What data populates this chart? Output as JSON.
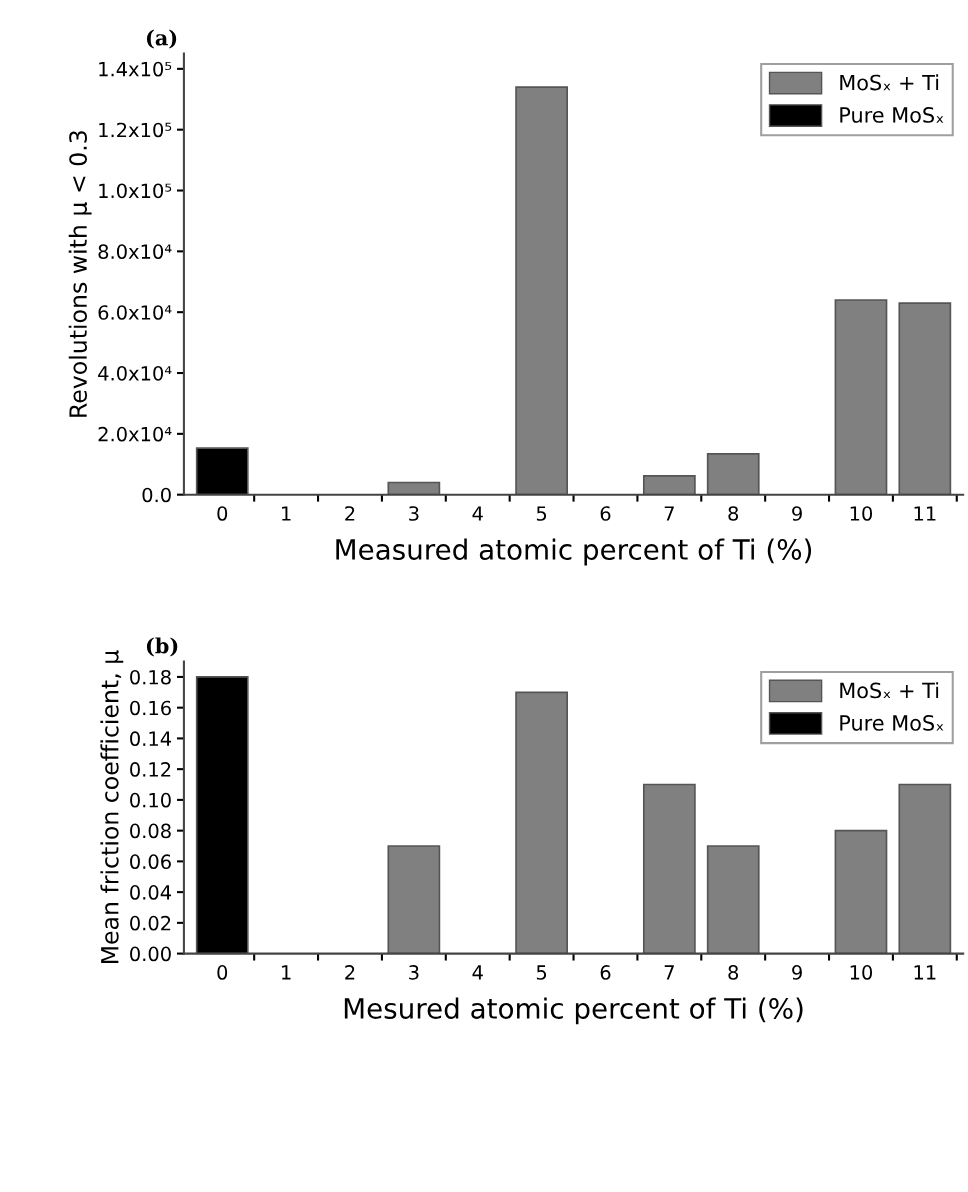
{
  "chart_data": [
    {
      "type": "bar",
      "title": "(a)",
      "xlabel": "Measured atomic percent of Ti (%)",
      "ylabel": "Revolutions with μ < 0.3",
      "categories": [
        "0",
        "1",
        "2",
        "3",
        "4",
        "5",
        "6",
        "7",
        "8",
        "9",
        "10",
        "11"
      ],
      "series": [
        {
          "name": "MoSₓ + Ti",
          "color": "#808080",
          "values": [
            null,
            null,
            null,
            4000,
            null,
            134000,
            null,
            6200,
            13400,
            null,
            64000,
            63000
          ]
        },
        {
          "name": "Pure MoSₓ",
          "color": "#000000",
          "values": [
            15300,
            null,
            null,
            null,
            null,
            null,
            null,
            null,
            null,
            null,
            null,
            null
          ]
        }
      ],
      "ylim": [
        0,
        145000
      ],
      "yticks": [
        {
          "value": 0,
          "label": "0.0"
        },
        {
          "value": 20000,
          "label": "2.0x10⁴"
        },
        {
          "value": 40000,
          "label": "4.0x10⁴"
        },
        {
          "value": 60000,
          "label": "6.0x10⁴"
        },
        {
          "value": 80000,
          "label": "8.0x10⁴"
        },
        {
          "value": 100000,
          "label": "1.0x10⁵"
        },
        {
          "value": 120000,
          "label": "1.2x10⁵"
        },
        {
          "value": 140000,
          "label": "1.4x10⁵"
        }
      ],
      "legend": "top right"
    },
    {
      "type": "bar",
      "title": "(b)",
      "xlabel": "Mesured atomic percent of Ti (%)",
      "ylabel": "Mean friction coefficient, μ",
      "categories": [
        "0",
        "1",
        "2",
        "3",
        "4",
        "5",
        "6",
        "7",
        "8",
        "9",
        "10",
        "11"
      ],
      "series": [
        {
          "name": "MoSₓ + Ti",
          "color": "#808080",
          "values": [
            null,
            null,
            null,
            0.07,
            null,
            0.17,
            null,
            0.11,
            0.07,
            null,
            0.08,
            0.11
          ]
        },
        {
          "name": "Pure MoSₓ",
          "color": "#000000",
          "values": [
            0.18,
            null,
            null,
            null,
            null,
            null,
            null,
            null,
            null,
            null,
            null,
            null
          ]
        }
      ],
      "ylim": [
        0,
        0.19
      ],
      "yticks": [
        {
          "value": 0,
          "label": "0.00"
        },
        {
          "value": 0.02,
          "label": "0.02"
        },
        {
          "value": 0.04,
          "label": "0.04"
        },
        {
          "value": 0.06,
          "label": "0.06"
        },
        {
          "value": 0.08,
          "label": "0.08"
        },
        {
          "value": 0.1,
          "label": "0.10"
        },
        {
          "value": 0.12,
          "label": "0.12"
        },
        {
          "value": 0.14,
          "label": "0.14"
        },
        {
          "value": 0.16,
          "label": "0.16"
        },
        {
          "value": 0.18,
          "label": "0.18"
        }
      ],
      "legend": "top right"
    }
  ]
}
